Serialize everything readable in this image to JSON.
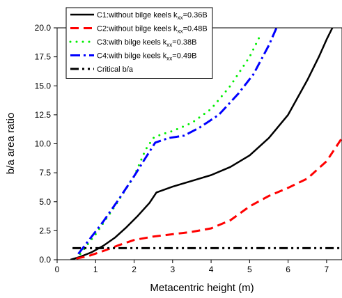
{
  "chart_data": {
    "type": "line",
    "xlabel": "Metacentric height (m)",
    "ylabel": "b/a area ratio",
    "xlim": [
      0,
      7.4
    ],
    "ylim": [
      0,
      20
    ],
    "x_ticks": [
      0,
      1,
      2,
      3,
      4,
      5,
      6,
      7
    ],
    "y_ticks": [
      0.0,
      2.5,
      5.0,
      7.5,
      10.0,
      12.5,
      15.0,
      17.5,
      20.0
    ],
    "x_tick_labels": [
      "0",
      "1",
      "2",
      "3",
      "4",
      "5",
      "6",
      "7"
    ],
    "y_tick_labels": [
      "0.0",
      "2.5",
      "5.0",
      "7.5",
      "10.0",
      "12.5",
      "15.0",
      "17.5",
      "20.0"
    ],
    "legend_position": "top-left",
    "series": [
      {
        "name": "C1:without bilge keels k",
        "name_sub": "xx",
        "name_suffix": "=0.36B",
        "color": "#000000",
        "style": "solid",
        "x": [
          0.35,
          0.6,
          0.9,
          1.2,
          1.5,
          1.8,
          2.1,
          2.4,
          2.58,
          3.0,
          3.5,
          4.0,
          4.5,
          5.0,
          5.5,
          6.0,
          6.5,
          6.8,
          7.0,
          7.15
        ],
        "y": [
          0.0,
          0.25,
          0.65,
          1.2,
          1.9,
          2.8,
          3.8,
          4.9,
          5.8,
          6.3,
          6.8,
          7.3,
          8.0,
          9.0,
          10.5,
          12.5,
          15.5,
          17.5,
          19.0,
          20.0
        ]
      },
      {
        "name": "C2:without bilge keels k",
        "name_sub": "xx",
        "name_suffix": "=0.48B",
        "color": "#ff0000",
        "style": "dash",
        "x": [
          0.5,
          0.8,
          1.2,
          1.6,
          2.0,
          2.5,
          3.0,
          3.5,
          4.0,
          4.5,
          5.0,
          5.5,
          6.0,
          6.5,
          7.0,
          7.4
        ],
        "y": [
          0.1,
          0.3,
          0.75,
          1.25,
          1.7,
          2.0,
          2.2,
          2.4,
          2.7,
          3.4,
          4.6,
          5.5,
          6.2,
          7.0,
          8.5,
          10.5
        ]
      },
      {
        "name": "C3:with bilge keels k",
        "name_sub": "xx",
        "name_suffix": "=0.38B",
        "color": "#00ee00",
        "style": "dot",
        "x": [
          0.6,
          1.0,
          1.5,
          2.0,
          2.3,
          2.5,
          2.7,
          3.0,
          3.5,
          4.0,
          4.5,
          5.0,
          5.3
        ],
        "y": [
          0.5,
          2.2,
          4.6,
          7.2,
          9.5,
          10.5,
          10.8,
          11.1,
          11.8,
          13.0,
          15.0,
          17.5,
          19.5
        ]
      },
      {
        "name": "C4:with bilge keels k",
        "name_sub": "xx",
        "name_suffix": "=0.49B",
        "color": "#0000ff",
        "style": "dashdot",
        "x": [
          0.55,
          0.9,
          1.2,
          1.6,
          2.0,
          2.3,
          2.55,
          2.9,
          3.3,
          3.7,
          4.2,
          4.7,
          5.1,
          5.5,
          5.7
        ],
        "y": [
          0.5,
          2.0,
          3.3,
          5.2,
          7.2,
          8.8,
          10.1,
          10.5,
          10.7,
          11.4,
          12.5,
          14.3,
          16.0,
          18.5,
          20.0
        ]
      },
      {
        "name": "Critical b/a",
        "color": "#000000",
        "style": "dashdotdot",
        "x": [
          0.4,
          7.4
        ],
        "y": [
          1.0,
          1.0
        ]
      }
    ]
  }
}
